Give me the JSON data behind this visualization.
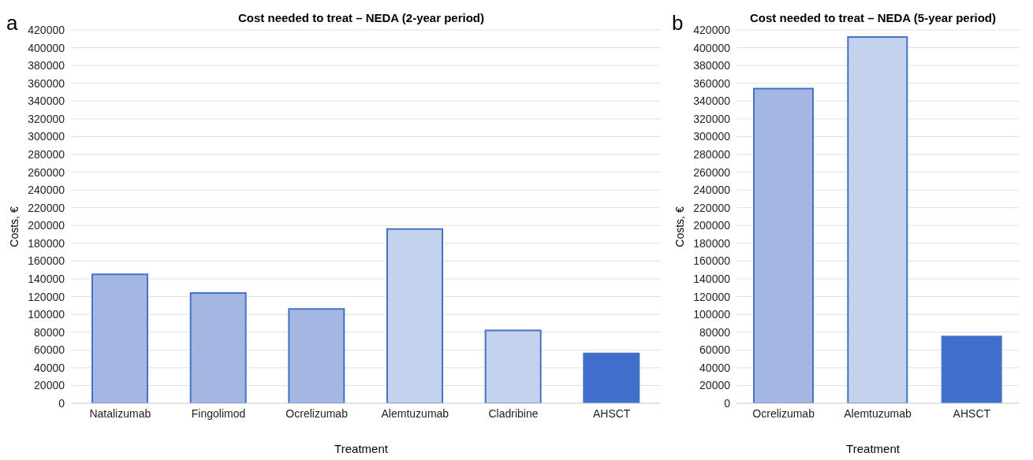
{
  "chart_data": [
    {
      "type": "bar",
      "title": "Cost needed to treat – NEDA (2-year period)",
      "xlabel": "Treatment",
      "ylabel": "Costs, €",
      "annotations": [
        "a"
      ],
      "categories": [
        "Natalizumab",
        "Fingolimod",
        "Ocrelizumab",
        "Alemtuzumab",
        "Cladribine",
        "AHSCT"
      ],
      "values": [
        145000,
        124000,
        106000,
        196000,
        82000,
        56000
      ],
      "colors": [
        "#a3b7e2",
        "#a3b7e2",
        "#a3b7e2",
        "#c4d2ee",
        "#c4d2ee",
        "#3f6fca"
      ],
      "ylim": [
        0,
        420000
      ],
      "yticks": [
        0,
        20000,
        40000,
        60000,
        80000,
        100000,
        120000,
        140000,
        160000,
        180000,
        200000,
        220000,
        240000,
        260000,
        280000,
        300000,
        320000,
        340000,
        360000,
        380000,
        400000,
        420000
      ],
      "grid": "y"
    },
    {
      "type": "bar",
      "title": "Cost needed to treat – NEDA (5-year period)",
      "xlabel": "Treatment",
      "ylabel": "Costs, €",
      "annotations": [
        "b"
      ],
      "categories": [
        "Ocrelizumab",
        "Alemtuzumab",
        "AHSCT"
      ],
      "values": [
        354000,
        412000,
        75000
      ],
      "colors": [
        "#a3b7e2",
        "#c4d2ee",
        "#3f6fca"
      ],
      "ylim": [
        0,
        420000
      ],
      "yticks": [
        0,
        20000,
        40000,
        60000,
        80000,
        100000,
        120000,
        140000,
        160000,
        180000,
        200000,
        220000,
        240000,
        260000,
        280000,
        300000,
        320000,
        340000,
        360000,
        380000,
        400000,
        420000
      ],
      "grid": "y"
    }
  ]
}
